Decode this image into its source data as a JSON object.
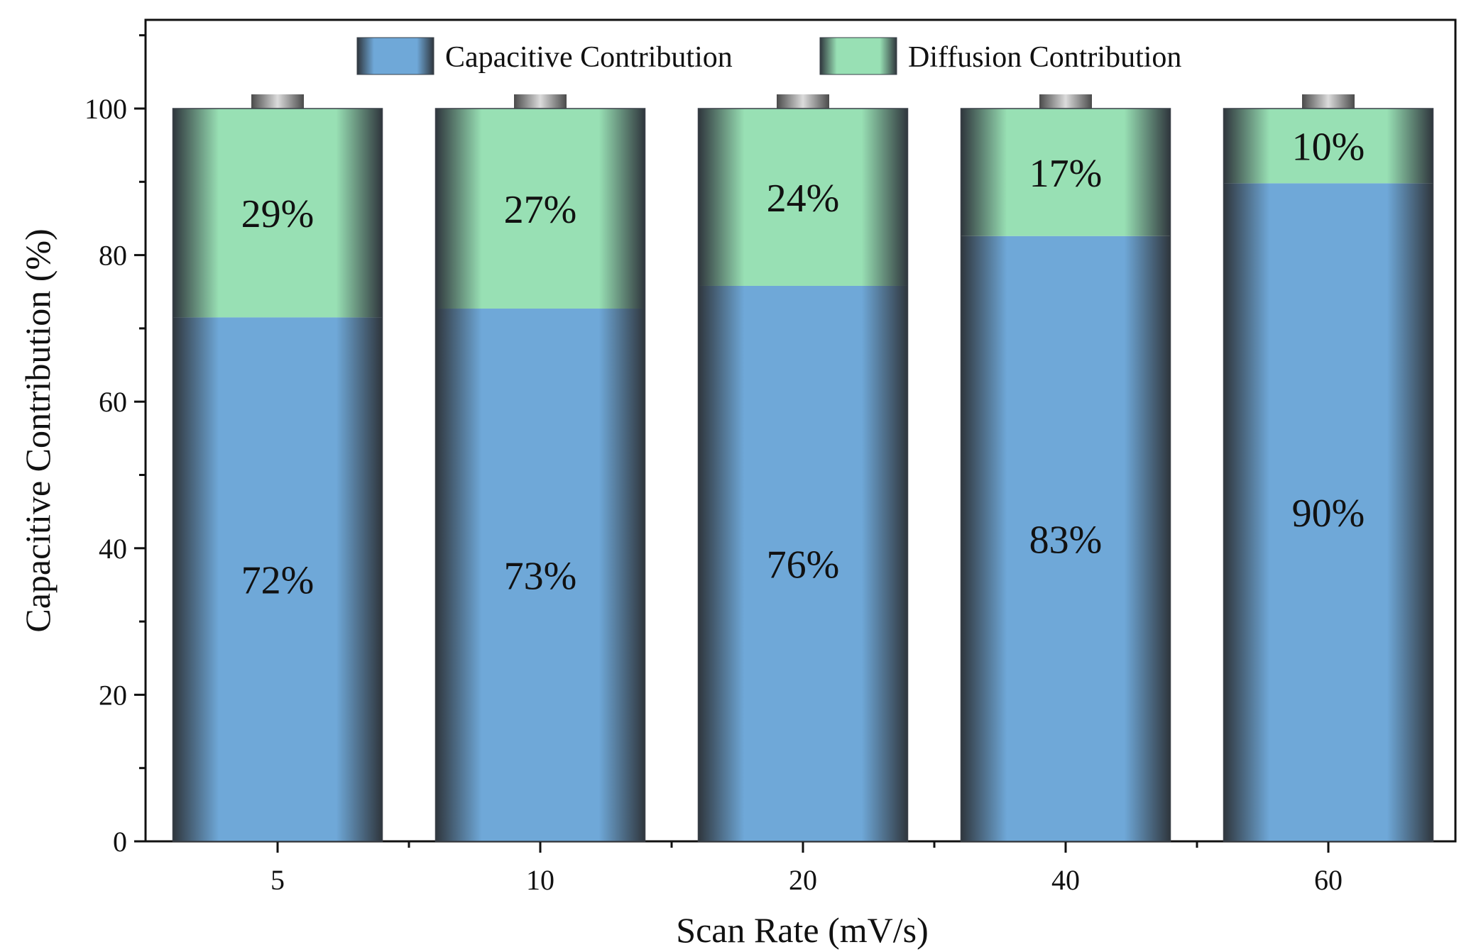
{
  "chart_data": {
    "type": "bar",
    "stacked": true,
    "title": "",
    "xlabel": "Scan Rate (mV/s)",
    "ylabel": "Capacitive Contribution (%)",
    "categories": [
      "5",
      "10",
      "20",
      "40",
      "60"
    ],
    "ylim": [
      0,
      112
    ],
    "yticks": [
      0,
      20,
      40,
      60,
      80,
      100
    ],
    "yminor_step": 10,
    "grid": false,
    "legend_position": "top-center",
    "series": [
      {
        "name": "Capacitive Contribution",
        "values": [
          71.5,
          72.7,
          75.8,
          82.6,
          89.8
        ],
        "labels": [
          "72%",
          "73%",
          "76%",
          "83%",
          "90%"
        ],
        "color": "#6fa8d8"
      },
      {
        "name": "Diffusion Contribution",
        "values": [
          28.5,
          27.3,
          24.2,
          17.4,
          10.2
        ],
        "labels": [
          "29%",
          "27%",
          "24%",
          "17%",
          "10%"
        ],
        "color": "#98e0b4"
      }
    ],
    "colors": {
      "edge": "#3a4048",
      "cap": "#8a8a8a"
    }
  }
}
